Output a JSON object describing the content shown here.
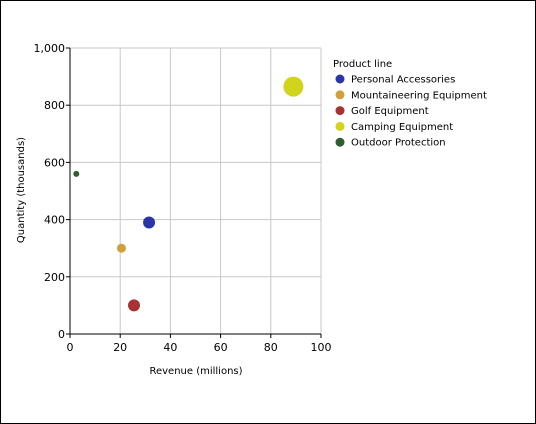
{
  "chart_data": {
    "type": "scatter",
    "xlabel": "Revenue (millions)",
    "ylabel": "Quantity (thousands)",
    "xlim": [
      0,
      100
    ],
    "ylim": [
      0,
      1000
    ],
    "x_ticks": [
      "0",
      "20",
      "40",
      "60",
      "80",
      "100"
    ],
    "y_ticks": [
      "0",
      "200",
      "400",
      "600",
      "800",
      "1,000"
    ],
    "grid": true,
    "legend": {
      "title": "Product line",
      "placement": "right"
    },
    "series": [
      {
        "name": "Personal Accessories",
        "color": "#2b34a8",
        "x": 31.5,
        "y": 390,
        "marker_scale": 0.6
      },
      {
        "name": "Mountaineering Equipment",
        "color": "#d0a03a",
        "x": 20.5,
        "y": 300,
        "marker_scale": 0.45
      },
      {
        "name": "Golf Equipment",
        "color": "#a83232",
        "x": 25.5,
        "y": 100,
        "marker_scale": 0.6
      },
      {
        "name": "Camping Equipment",
        "color": "#d2d41c",
        "x": 89,
        "y": 865,
        "marker_scale": 1.0
      },
      {
        "name": "Outdoor Protection",
        "color": "#2f5e2f",
        "x": 2.5,
        "y": 560,
        "marker_scale": 0.3
      }
    ]
  }
}
